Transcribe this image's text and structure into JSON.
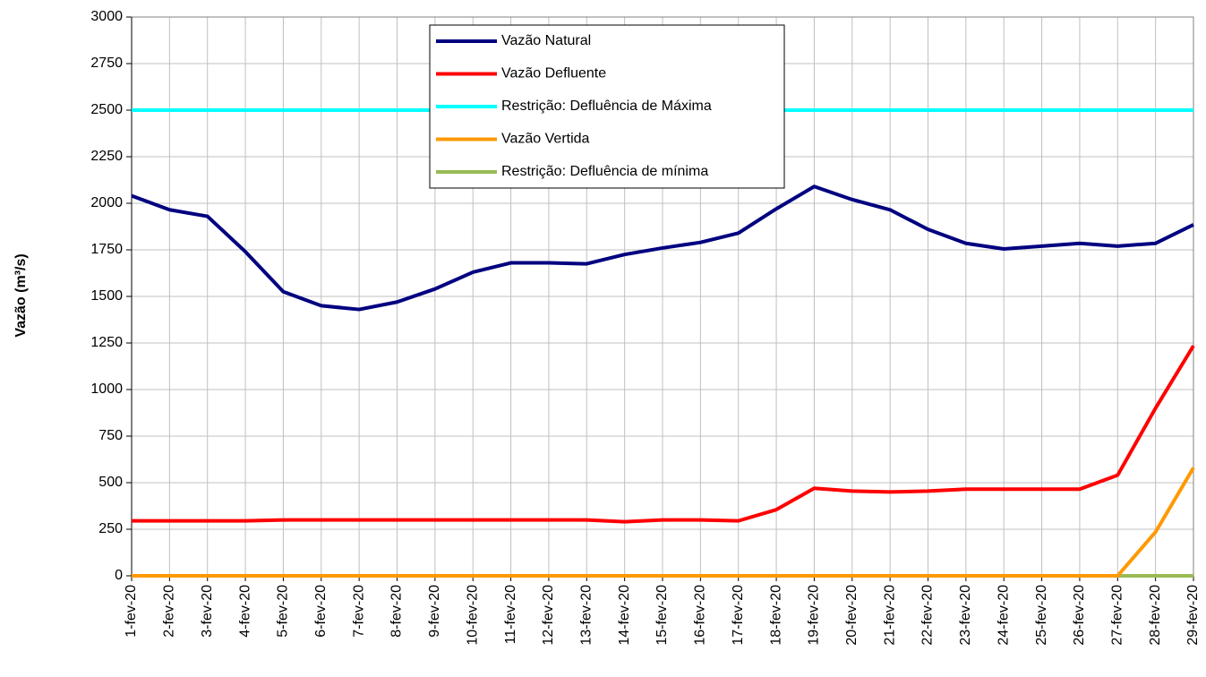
{
  "chart_data": {
    "type": "line",
    "ylabel": "Vazão (m³/s)",
    "categories": [
      "1-fev-20",
      "2-fev-20",
      "3-fev-20",
      "4-fev-20",
      "5-fev-20",
      "6-fev-20",
      "7-fev-20",
      "8-fev-20",
      "9-fev-20",
      "10-fev-20",
      "11-fev-20",
      "12-fev-20",
      "13-fev-20",
      "14-fev-20",
      "15-fev-20",
      "16-fev-20",
      "17-fev-20",
      "18-fev-20",
      "19-fev-20",
      "20-fev-20",
      "21-fev-20",
      "22-fev-20",
      "23-fev-20",
      "24-fev-20",
      "25-fev-20",
      "26-fev-20",
      "27-fev-20",
      "28-fev-20",
      "29-fev-20"
    ],
    "series": [
      {
        "name": "Vazão Natural",
        "color": "#000080",
        "values": [
          2040,
          1965,
          1930,
          1740,
          1525,
          1450,
          1430,
          1470,
          1540,
          1630,
          1680,
          1680,
          1675,
          1725,
          1760,
          1790,
          1840,
          1970,
          2090,
          2020,
          1965,
          1860,
          1785,
          1755,
          1770,
          1785,
          1770,
          1785,
          1885
        ]
      },
      {
        "name": "Vazão Defluente",
        "color": "#ff0000",
        "values": [
          295,
          295,
          295,
          295,
          300,
          300,
          300,
          300,
          300,
          300,
          300,
          300,
          300,
          290,
          300,
          300,
          295,
          355,
          470,
          455,
          450,
          455,
          465,
          465,
          465,
          465,
          540,
          900,
          1235
        ]
      },
      {
        "name": "Restrição: Defluência de Máxima",
        "color": "#00ffff",
        "values": [
          2500,
          2500,
          2500,
          2500,
          2500,
          2500,
          2500,
          2500,
          2500,
          2500,
          2500,
          2500,
          2500,
          2500,
          2500,
          2500,
          2500,
          2500,
          2500,
          2500,
          2500,
          2500,
          2500,
          2500,
          2500,
          2500,
          2500,
          2500,
          2500
        ]
      },
      {
        "name": "Vazão Vertida",
        "color": "#ff9900",
        "values": [
          0,
          0,
          0,
          0,
          0,
          0,
          0,
          0,
          0,
          0,
          0,
          0,
          0,
          0,
          0,
          0,
          0,
          0,
          0,
          0,
          0,
          0,
          0,
          0,
          0,
          0,
          0,
          235,
          580
        ]
      },
      {
        "name": "Restrição: Defluência de mínima",
        "color": "#99bb55",
        "values": [
          0,
          0,
          0,
          0,
          0,
          0,
          0,
          0,
          0,
          0,
          0,
          0,
          0,
          0,
          0,
          0,
          0,
          0,
          0,
          0,
          0,
          0,
          0,
          0,
          0,
          0,
          0,
          0,
          0
        ]
      }
    ],
    "ylim": [
      0,
      3000
    ],
    "yticks": [
      0,
      250,
      500,
      750,
      1000,
      1250,
      1500,
      1750,
      2000,
      2250,
      2500,
      2750,
      3000
    ],
    "grid": true
  }
}
